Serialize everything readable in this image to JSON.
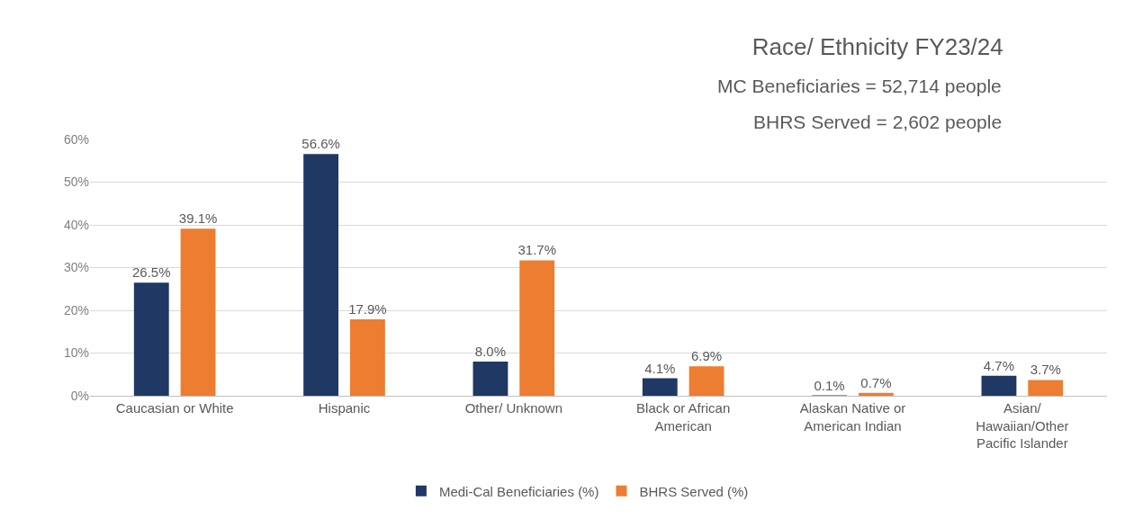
{
  "chart_data": {
    "type": "bar",
    "title": "Race/ Ethnicity FY23/24",
    "subtitle": "MC Beneficiaries = 52,714 people",
    "annotations": [
      "BHRS Served = 2,602 people"
    ],
    "categories": [
      "Caucasian or White",
      "Hispanic",
      "Other/ Unknown",
      "Black or African American",
      "Alaskan Native or American Indian",
      "Asian/ Hawaiian/Other Pacific Islander"
    ],
    "series": [
      {
        "name": "Medi-Cal Beneficiaries (%)",
        "color": "#203864",
        "values": [
          26.5,
          56.6,
          8.0,
          4.1,
          0.1,
          4.7
        ],
        "value_labels": [
          "26.5%",
          "56.6%",
          "8.0%",
          "4.1%",
          "0.1%",
          "4.7%"
        ]
      },
      {
        "name": "BHRS Served (%)",
        "color": "#ed7d31",
        "values": [
          39.1,
          17.9,
          31.7,
          6.9,
          0.7,
          3.7
        ],
        "value_labels": [
          "39.1%",
          "17.9%",
          "31.7%",
          "6.9%",
          "0.7%",
          "3.7%"
        ]
      }
    ],
    "ylim": [
      0,
      60
    ],
    "yticks": [
      {
        "value": 0,
        "label": "0%"
      },
      {
        "value": 10,
        "label": "10%"
      },
      {
        "value": 20,
        "label": "20%"
      },
      {
        "value": 30,
        "label": "30%"
      },
      {
        "value": 40,
        "label": "40%"
      },
      {
        "value": 50,
        "label": "50%"
      },
      {
        "value": 60,
        "label": "60%"
      }
    ],
    "grid": "y",
    "legend": "bottom"
  }
}
